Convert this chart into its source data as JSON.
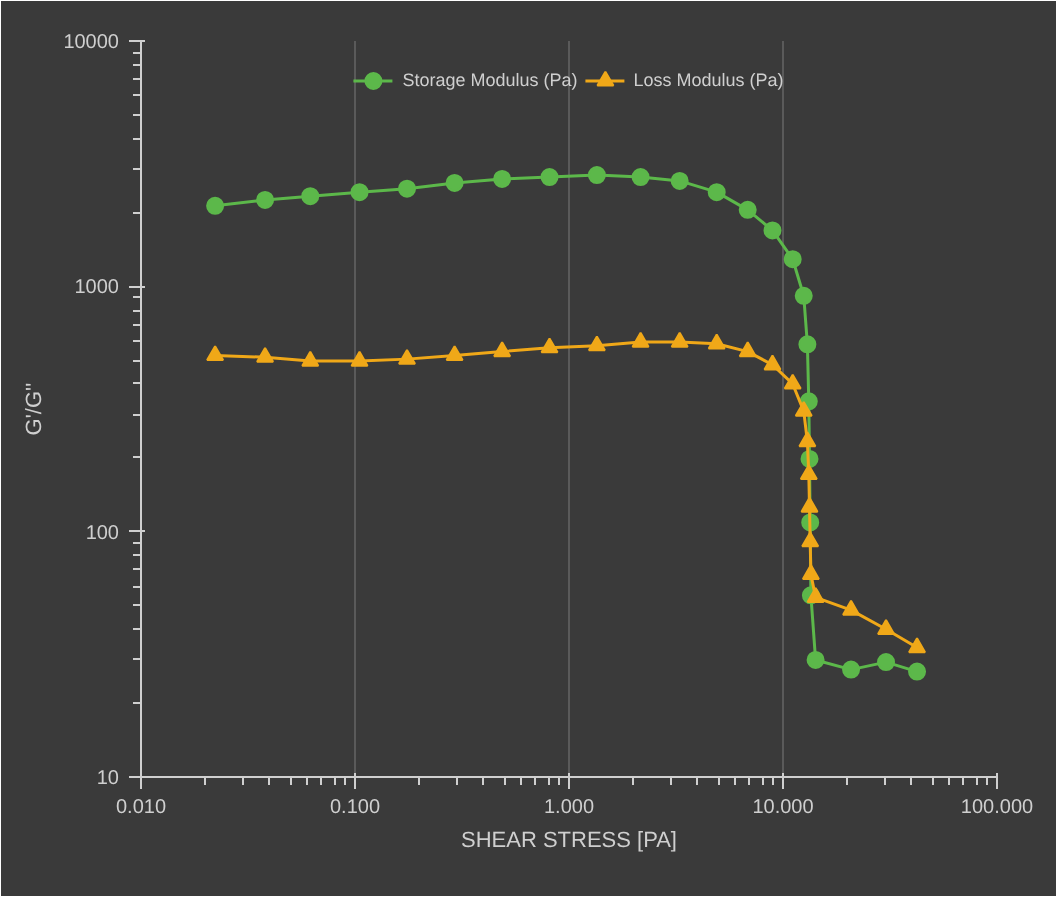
{
  "chart_data": {
    "type": "line",
    "xlabel": "SHEAR STRESS [PA]",
    "ylabel": "G'/G''",
    "log": "xy",
    "grid": "x",
    "legend": "top",
    "line_style": "solid",
    "x": [
      0.0222,
      0.038,
      0.0618,
      0.105,
      0.175,
      0.292,
      0.487,
      0.811,
      1.35,
      2.16,
      3.29,
      4.9,
      6.84,
      8.93,
      11.1,
      12.5,
      13.0,
      13.2,
      13.3,
      13.4,
      13.5,
      14.2,
      20.8,
      30.3,
      42.3
    ],
    "xlim": [
      0.01,
      100
    ],
    "ylim": [
      10,
      10000
    ],
    "xticks": [
      {
        "value": 0.01,
        "label": "0.010"
      },
      {
        "value": 0.1,
        "label": "0.100"
      },
      {
        "value": 1,
        "label": "1.000"
      },
      {
        "value": 10,
        "label": "10.000"
      },
      {
        "value": 100,
        "label": "100.000"
      }
    ],
    "yticks": [
      10,
      100,
      1000,
      10000
    ],
    "series": [
      {
        "name": "Storage Modulus (Pa)",
        "color": "#5cb84a",
        "marker": "circle",
        "values": [
          2130,
          2250,
          2330,
          2420,
          2500,
          2640,
          2740,
          2790,
          2840,
          2790,
          2690,
          2420,
          2050,
          1690,
          1290,
          915,
          580,
          340,
          198,
          109,
          55,
          30,
          27.4,
          29.4,
          26.9
        ]
      },
      {
        "name": "Loss Modulus (Pa)",
        "color": "#f0a818",
        "marker": "triangle",
        "values": [
          523,
          514,
          496,
          496,
          505,
          523,
          542,
          562,
          573,
          593,
          593,
          583,
          542,
          479,
          400,
          310,
          233,
          171,
          126,
          91,
          67,
          54,
          47.9,
          40,
          33.7
        ]
      }
    ]
  }
}
